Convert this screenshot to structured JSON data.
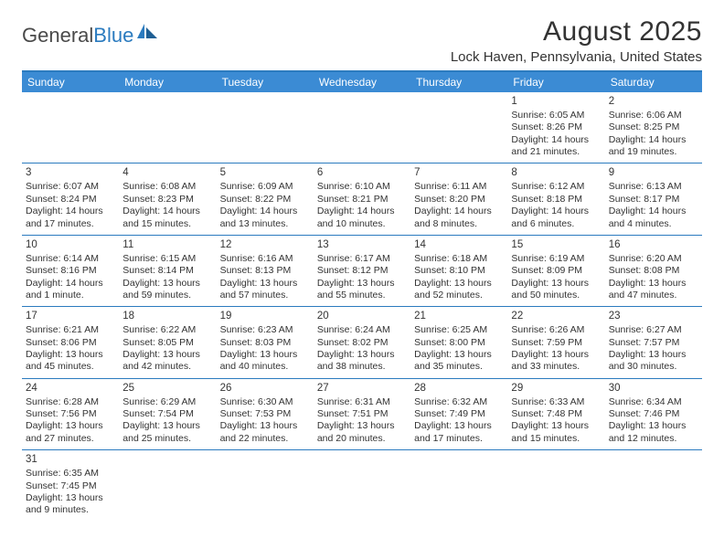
{
  "logo": {
    "text1": "General",
    "text2": "Blue"
  },
  "title": "August 2025",
  "location": "Lock Haven, Pennsylvania, United States",
  "colors": {
    "header_bar": "#3b8bd4",
    "header_text": "#ffffff",
    "rule": "#2b7bbf",
    "body_text": "#333333",
    "logo_gray": "#4a4a4a",
    "logo_blue": "#2b7bbf",
    "background": "#ffffff"
  },
  "typography": {
    "title_fontsize": 30,
    "location_fontsize": 15,
    "dayhead_fontsize": 12,
    "daynum_fontsize": 11.5,
    "cell_fontsize": 10.5,
    "logo_fontsize": 22
  },
  "layout": {
    "columns": 7,
    "cell_min_height": 68
  },
  "day_names": [
    "Sunday",
    "Monday",
    "Tuesday",
    "Wednesday",
    "Thursday",
    "Friday",
    "Saturday"
  ],
  "weeks": [
    [
      null,
      null,
      null,
      null,
      null,
      {
        "n": "1",
        "sr": "Sunrise: 6:05 AM",
        "ss": "Sunset: 8:26 PM",
        "d1": "Daylight: 14 hours",
        "d2": "and 21 minutes."
      },
      {
        "n": "2",
        "sr": "Sunrise: 6:06 AM",
        "ss": "Sunset: 8:25 PM",
        "d1": "Daylight: 14 hours",
        "d2": "and 19 minutes."
      }
    ],
    [
      {
        "n": "3",
        "sr": "Sunrise: 6:07 AM",
        "ss": "Sunset: 8:24 PM",
        "d1": "Daylight: 14 hours",
        "d2": "and 17 minutes."
      },
      {
        "n": "4",
        "sr": "Sunrise: 6:08 AM",
        "ss": "Sunset: 8:23 PM",
        "d1": "Daylight: 14 hours",
        "d2": "and 15 minutes."
      },
      {
        "n": "5",
        "sr": "Sunrise: 6:09 AM",
        "ss": "Sunset: 8:22 PM",
        "d1": "Daylight: 14 hours",
        "d2": "and 13 minutes."
      },
      {
        "n": "6",
        "sr": "Sunrise: 6:10 AM",
        "ss": "Sunset: 8:21 PM",
        "d1": "Daylight: 14 hours",
        "d2": "and 10 minutes."
      },
      {
        "n": "7",
        "sr": "Sunrise: 6:11 AM",
        "ss": "Sunset: 8:20 PM",
        "d1": "Daylight: 14 hours",
        "d2": "and 8 minutes."
      },
      {
        "n": "8",
        "sr": "Sunrise: 6:12 AM",
        "ss": "Sunset: 8:18 PM",
        "d1": "Daylight: 14 hours",
        "d2": "and 6 minutes."
      },
      {
        "n": "9",
        "sr": "Sunrise: 6:13 AM",
        "ss": "Sunset: 8:17 PM",
        "d1": "Daylight: 14 hours",
        "d2": "and 4 minutes."
      }
    ],
    [
      {
        "n": "10",
        "sr": "Sunrise: 6:14 AM",
        "ss": "Sunset: 8:16 PM",
        "d1": "Daylight: 14 hours",
        "d2": "and 1 minute."
      },
      {
        "n": "11",
        "sr": "Sunrise: 6:15 AM",
        "ss": "Sunset: 8:14 PM",
        "d1": "Daylight: 13 hours",
        "d2": "and 59 minutes."
      },
      {
        "n": "12",
        "sr": "Sunrise: 6:16 AM",
        "ss": "Sunset: 8:13 PM",
        "d1": "Daylight: 13 hours",
        "d2": "and 57 minutes."
      },
      {
        "n": "13",
        "sr": "Sunrise: 6:17 AM",
        "ss": "Sunset: 8:12 PM",
        "d1": "Daylight: 13 hours",
        "d2": "and 55 minutes."
      },
      {
        "n": "14",
        "sr": "Sunrise: 6:18 AM",
        "ss": "Sunset: 8:10 PM",
        "d1": "Daylight: 13 hours",
        "d2": "and 52 minutes."
      },
      {
        "n": "15",
        "sr": "Sunrise: 6:19 AM",
        "ss": "Sunset: 8:09 PM",
        "d1": "Daylight: 13 hours",
        "d2": "and 50 minutes."
      },
      {
        "n": "16",
        "sr": "Sunrise: 6:20 AM",
        "ss": "Sunset: 8:08 PM",
        "d1": "Daylight: 13 hours",
        "d2": "and 47 minutes."
      }
    ],
    [
      {
        "n": "17",
        "sr": "Sunrise: 6:21 AM",
        "ss": "Sunset: 8:06 PM",
        "d1": "Daylight: 13 hours",
        "d2": "and 45 minutes."
      },
      {
        "n": "18",
        "sr": "Sunrise: 6:22 AM",
        "ss": "Sunset: 8:05 PM",
        "d1": "Daylight: 13 hours",
        "d2": "and 42 minutes."
      },
      {
        "n": "19",
        "sr": "Sunrise: 6:23 AM",
        "ss": "Sunset: 8:03 PM",
        "d1": "Daylight: 13 hours",
        "d2": "and 40 minutes."
      },
      {
        "n": "20",
        "sr": "Sunrise: 6:24 AM",
        "ss": "Sunset: 8:02 PM",
        "d1": "Daylight: 13 hours",
        "d2": "and 38 minutes."
      },
      {
        "n": "21",
        "sr": "Sunrise: 6:25 AM",
        "ss": "Sunset: 8:00 PM",
        "d1": "Daylight: 13 hours",
        "d2": "and 35 minutes."
      },
      {
        "n": "22",
        "sr": "Sunrise: 6:26 AM",
        "ss": "Sunset: 7:59 PM",
        "d1": "Daylight: 13 hours",
        "d2": "and 33 minutes."
      },
      {
        "n": "23",
        "sr": "Sunrise: 6:27 AM",
        "ss": "Sunset: 7:57 PM",
        "d1": "Daylight: 13 hours",
        "d2": "and 30 minutes."
      }
    ],
    [
      {
        "n": "24",
        "sr": "Sunrise: 6:28 AM",
        "ss": "Sunset: 7:56 PM",
        "d1": "Daylight: 13 hours",
        "d2": "and 27 minutes."
      },
      {
        "n": "25",
        "sr": "Sunrise: 6:29 AM",
        "ss": "Sunset: 7:54 PM",
        "d1": "Daylight: 13 hours",
        "d2": "and 25 minutes."
      },
      {
        "n": "26",
        "sr": "Sunrise: 6:30 AM",
        "ss": "Sunset: 7:53 PM",
        "d1": "Daylight: 13 hours",
        "d2": "and 22 minutes."
      },
      {
        "n": "27",
        "sr": "Sunrise: 6:31 AM",
        "ss": "Sunset: 7:51 PM",
        "d1": "Daylight: 13 hours",
        "d2": "and 20 minutes."
      },
      {
        "n": "28",
        "sr": "Sunrise: 6:32 AM",
        "ss": "Sunset: 7:49 PM",
        "d1": "Daylight: 13 hours",
        "d2": "and 17 minutes."
      },
      {
        "n": "29",
        "sr": "Sunrise: 6:33 AM",
        "ss": "Sunset: 7:48 PM",
        "d1": "Daylight: 13 hours",
        "d2": "and 15 minutes."
      },
      {
        "n": "30",
        "sr": "Sunrise: 6:34 AM",
        "ss": "Sunset: 7:46 PM",
        "d1": "Daylight: 13 hours",
        "d2": "and 12 minutes."
      }
    ],
    [
      {
        "n": "31",
        "sr": "Sunrise: 6:35 AM",
        "ss": "Sunset: 7:45 PM",
        "d1": "Daylight: 13 hours",
        "d2": "and 9 minutes."
      },
      null,
      null,
      null,
      null,
      null,
      null
    ]
  ]
}
